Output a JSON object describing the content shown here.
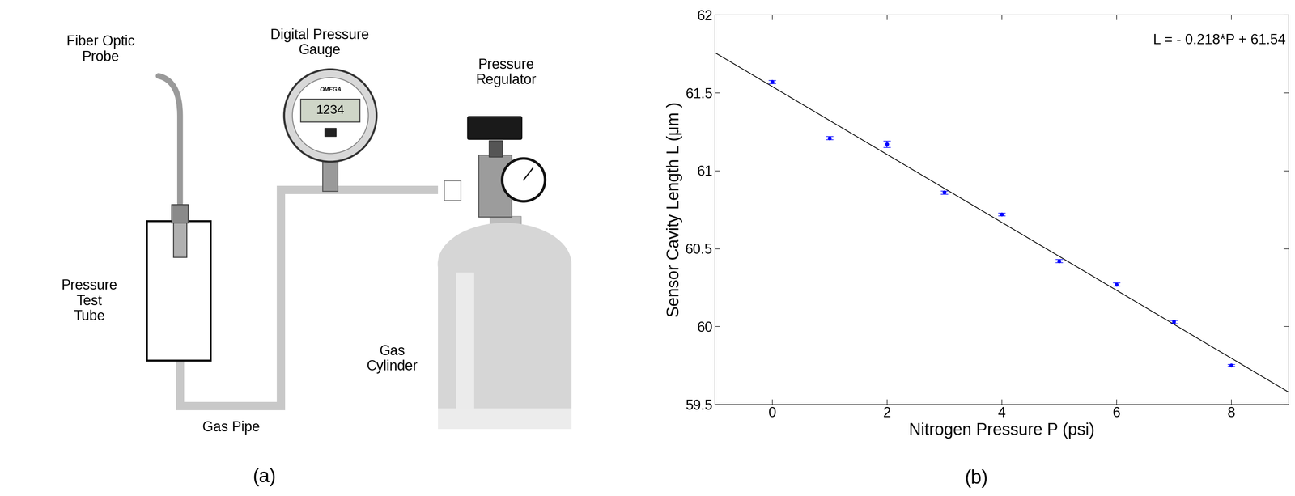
{
  "diagram": {
    "labels": {
      "fiber_optic_probe": "Fiber Optic\nProbe",
      "digital_pressure_gauge": "Digital Pressure\nGauge",
      "pressure_regulator": "Pressure\nRegulator",
      "pressure_test_tube": "Pressure\nTest\nTube",
      "gas_cylinder": "Gas\nCylinder",
      "gas_pipe": "Gas Pipe"
    },
    "gauge_display": "1234",
    "gauge_brand": "OMEGA"
  },
  "panel_labels": [
    "(a)",
    "(b)"
  ],
  "chart_data": {
    "type": "scatter",
    "x": [
      0,
      1,
      2,
      3,
      4,
      5,
      6,
      7,
      8
    ],
    "values": [
      61.57,
      61.21,
      61.17,
      60.86,
      60.72,
      60.42,
      60.27,
      60.03,
      59.75
    ],
    "errors": [
      0.01,
      0.01,
      0.02,
      0.01,
      0.01,
      0.01,
      0.01,
      0.01,
      0.005
    ],
    "color": "#0000ff",
    "marker": "dot",
    "fit": {
      "slope": -0.218,
      "intercept": 61.54,
      "color": "#000000"
    },
    "annotation": "L = - 0.218*P + 61.54",
    "x_label": "Nitrogen Pressure P (psi)",
    "y_label": "Sensor Cavity Length L (μm )",
    "xlim": [
      -1,
      9
    ],
    "ylim": [
      59.5,
      62
    ],
    "xticks": [
      0,
      2,
      4,
      6,
      8
    ],
    "yticks": [
      59.5,
      60,
      60.5,
      61,
      61.5,
      62
    ],
    "grid": false
  }
}
